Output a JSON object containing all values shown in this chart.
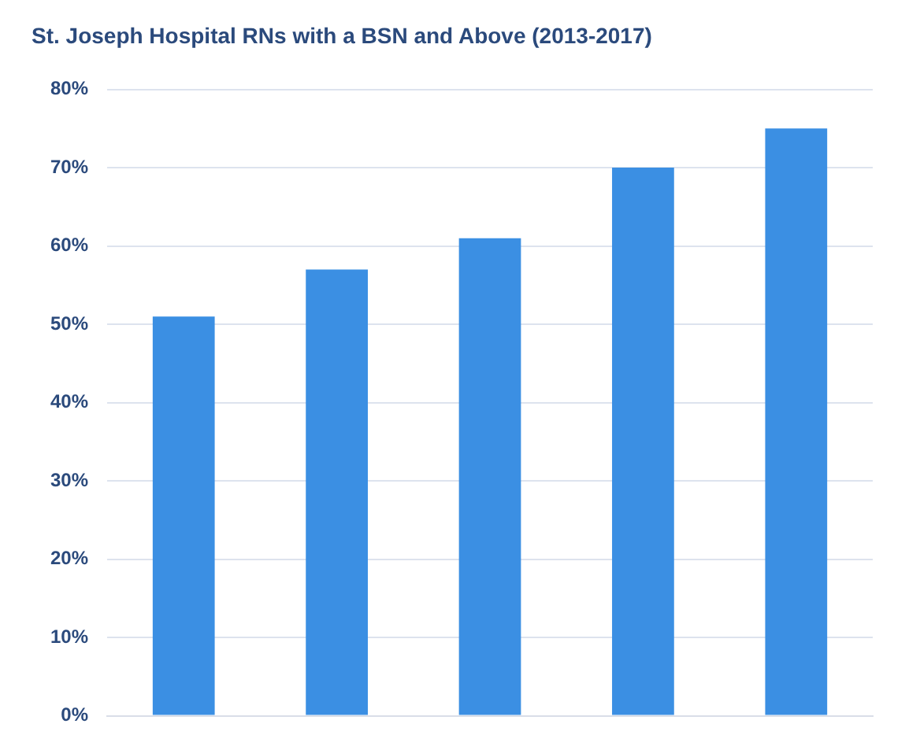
{
  "chart_data": {
    "type": "bar",
    "title": "St. Joseph Hospital RNs with a BSN and Above (2013-2017)",
    "categories": [
      null,
      null,
      null,
      null,
      null
    ],
    "values": [
      51,
      57,
      61,
      70,
      75
    ],
    "color": "#3b8fe3",
    "ylim": [
      0,
      80
    ],
    "yticks": [
      {
        "value": 0,
        "label": "0%"
      },
      {
        "value": 10,
        "label": "10%"
      },
      {
        "value": 20,
        "label": "20%"
      },
      {
        "value": 30,
        "label": "30%"
      },
      {
        "value": 40,
        "label": "40%"
      },
      {
        "value": 50,
        "label": "50%"
      },
      {
        "value": 60,
        "label": "60%"
      },
      {
        "value": 70,
        "label": "70%"
      },
      {
        "value": 80,
        "label": "80%"
      }
    ],
    "grid": "y",
    "legend": false,
    "tick_labels": "y"
  }
}
